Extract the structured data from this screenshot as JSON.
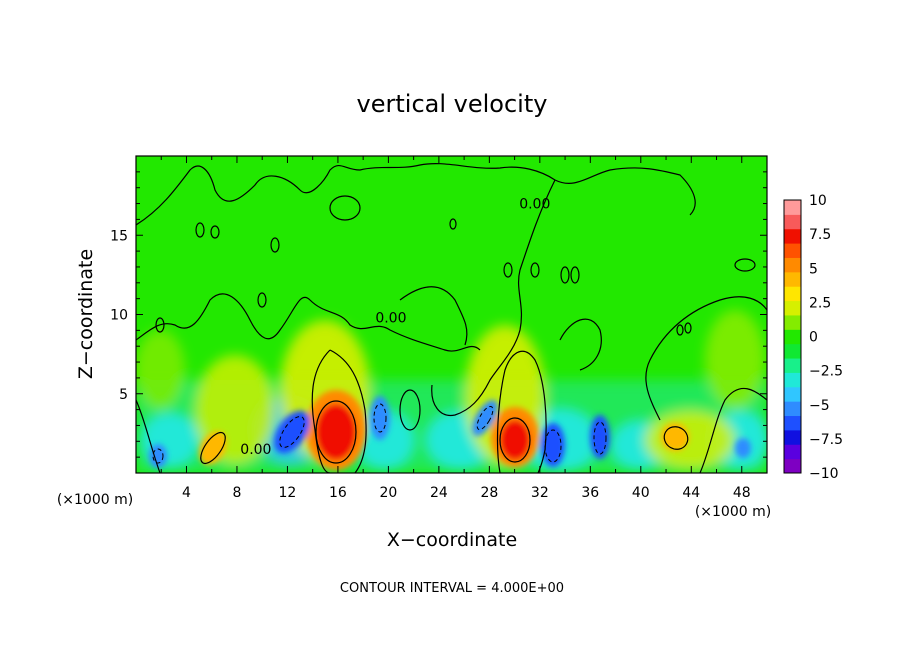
{
  "chart_data": {
    "type": "heatmap",
    "title": "vertical velocity",
    "xlabel": "X−coordinate",
    "ylabel": "Z−coordinate",
    "x_unit_left": "(×1000 m)",
    "x_unit_right": "(×1000 m)",
    "footer": "CONTOUR INTERVAL = 4.000E+00",
    "xlim": [
      0,
      50
    ],
    "ylim": [
      0,
      20
    ],
    "xticks": [
      {
        "value": 4,
        "label": "4"
      },
      {
        "value": 8,
        "label": "8"
      },
      {
        "value": 12,
        "label": "12"
      },
      {
        "value": 16,
        "label": "16"
      },
      {
        "value": 20,
        "label": "20"
      },
      {
        "value": 24,
        "label": "24"
      },
      {
        "value": 28,
        "label": "28"
      },
      {
        "value": 32,
        "label": "32"
      },
      {
        "value": 36,
        "label": "36"
      },
      {
        "value": 40,
        "label": "40"
      },
      {
        "value": 44,
        "label": "44"
      },
      {
        "value": 48,
        "label": "48"
      }
    ],
    "yticks": [
      {
        "value": 5,
        "label": "5"
      },
      {
        "value": 10,
        "label": "10"
      },
      {
        "value": 15,
        "label": "15"
      }
    ],
    "colorbar": {
      "range": [
        -10,
        10
      ],
      "ticks": [
        {
          "value": 10,
          "label": "10"
        },
        {
          "value": 7.5,
          "label": "7.5"
        },
        {
          "value": 5,
          "label": "5"
        },
        {
          "value": 2.5,
          "label": "2.5"
        },
        {
          "value": 0,
          "label": "0"
        },
        {
          "value": -2.5,
          "label": "−2.5"
        },
        {
          "value": -5,
          "label": "−5"
        },
        {
          "value": -7.5,
          "label": "−7.5"
        },
        {
          "value": -10,
          "label": "−10"
        }
      ],
      "colors": [
        "#7e00c2",
        "#5a00e0",
        "#1010e0",
        "#1e50ff",
        "#2f8cff",
        "#30c6ff",
        "#20e8d8",
        "#18f08a",
        "#10e832",
        "#22e800",
        "#84ec00",
        "#d6f000",
        "#ffe600",
        "#ffb800",
        "#ff8a00",
        "#ff5200",
        "#f01000",
        "#f85a5a",
        "#ff9a9a"
      ]
    },
    "contour_labels": [
      {
        "x": 20.2,
        "y": 9.5,
        "text": "0.00"
      },
      {
        "x": 31.6,
        "y": 16.7,
        "text": "0.00"
      },
      {
        "x": 9.5,
        "y": 1.2,
        "text": "0.00"
      }
    ],
    "features": [
      {
        "x": 15.9,
        "z": 2.7,
        "w": 8.5,
        "kind": "updraft"
      },
      {
        "x": 30.1,
        "z": 2.3,
        "w": 7.5,
        "kind": "updraft"
      },
      {
        "x": 6.3,
        "z": 1.8,
        "w": 3.5,
        "kind": "updraft"
      },
      {
        "x": 42.5,
        "z": 2.4,
        "w": 3.5,
        "kind": "updraft"
      },
      {
        "x": 12.2,
        "z": 2.5,
        "w": -5,
        "kind": "downdraft"
      },
      {
        "x": 19.0,
        "z": 3.4,
        "w": -4,
        "kind": "downdraft"
      },
      {
        "x": 27.0,
        "z": 3.5,
        "w": -3.5,
        "kind": "downdraft"
      },
      {
        "x": 33.3,
        "z": 1.5,
        "w": -6,
        "kind": "downdraft"
      },
      {
        "x": 36.8,
        "z": 2.0,
        "w": -5,
        "kind": "downdraft"
      },
      {
        "x": 48.2,
        "z": 1.5,
        "w": -3.5,
        "kind": "downdraft"
      },
      {
        "x": 1.5,
        "z": 1.2,
        "w": -4,
        "kind": "downdraft"
      }
    ]
  }
}
